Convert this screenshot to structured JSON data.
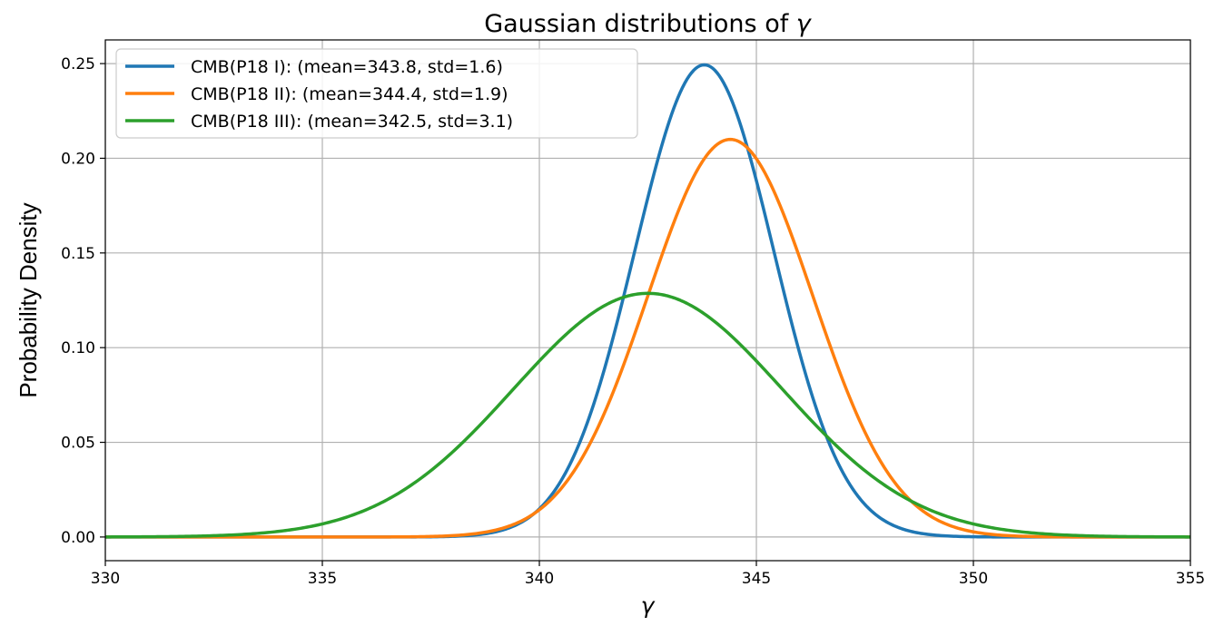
{
  "chart_data": {
    "type": "line",
    "title_prefix": "Gaussian distributions of ",
    "title_symbol": "γ",
    "xlabel": "γ",
    "ylabel": "Probability Density",
    "xlim": [
      330,
      355
    ],
    "ylim": [
      -0.0125,
      0.2625
    ],
    "x_ticks": [
      330,
      335,
      340,
      345,
      350,
      355
    ],
    "x_tick_labels": [
      "330",
      "335",
      "340",
      "345",
      "350",
      "355"
    ],
    "y_ticks": [
      0.0,
      0.05,
      0.1,
      0.15,
      0.2,
      0.25
    ],
    "y_tick_labels": [
      "0.00",
      "0.05",
      "0.10",
      "0.15",
      "0.20",
      "0.25"
    ],
    "grid": true,
    "legend_position": "upper-left",
    "series": [
      {
        "name": "CMB(P18 I): (mean=343.8, std=1.6)",
        "mean": 343.8,
        "std": 1.6,
        "color": "#1f77b4"
      },
      {
        "name": "CMB(P18 II): (mean=344.4, std=1.9)",
        "mean": 344.4,
        "std": 1.9,
        "color": "#ff7f0e"
      },
      {
        "name": "CMB(P18 III): (mean=342.5, std=3.1)",
        "mean": 342.5,
        "std": 3.1,
        "color": "#2ca02c"
      }
    ]
  }
}
